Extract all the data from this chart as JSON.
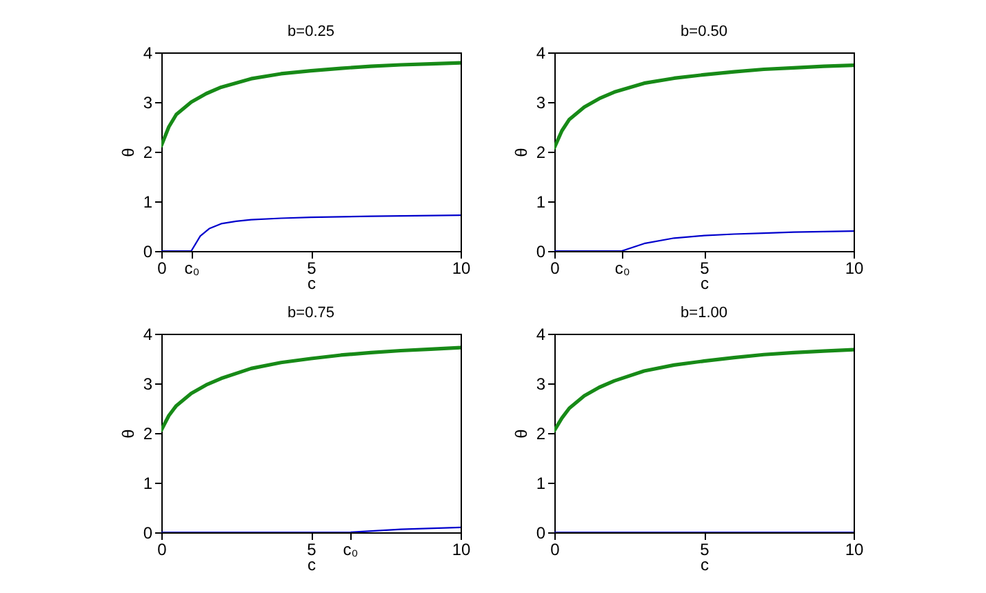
{
  "chart_data": [
    {
      "type": "line",
      "title": "b=0.25",
      "xlabel": "c",
      "ylabel": "θ",
      "xlim": [
        0,
        10
      ],
      "ylim": [
        0,
        4
      ],
      "xticks": [
        0,
        {
          "value": 1.0,
          "label": "c₀"
        },
        5,
        10
      ],
      "yticks": [
        0,
        1,
        2,
        3,
        4
      ],
      "grid": false,
      "series": [
        {
          "color": "#178a17",
          "x": [
            0,
            0.25,
            0.5,
            1,
            1.5,
            2,
            3,
            4,
            5,
            6,
            7,
            8,
            9,
            10
          ],
          "values": [
            2.12,
            2.5,
            2.75,
            3.0,
            3.17,
            3.3,
            3.47,
            3.57,
            3.63,
            3.68,
            3.72,
            3.75,
            3.77,
            3.79
          ]
        },
        {
          "color": "#0000cc",
          "x": [
            0,
            1.0,
            1.3,
            1.6,
            2,
            2.5,
            3,
            4,
            5,
            7,
            10
          ],
          "values": [
            0,
            0,
            0.3,
            0.45,
            0.55,
            0.6,
            0.63,
            0.66,
            0.68,
            0.7,
            0.72
          ]
        }
      ]
    },
    {
      "type": "line",
      "title": "b=0.50",
      "xlabel": "c",
      "ylabel": "θ",
      "xlim": [
        0,
        10
      ],
      "ylim": [
        0,
        4
      ],
      "xticks": [
        0,
        {
          "value": 2.25,
          "label": "c₀"
        },
        5,
        10
      ],
      "yticks": [
        0,
        1,
        2,
        3,
        4
      ],
      "grid": false,
      "series": [
        {
          "color": "#178a17",
          "x": [
            0,
            0.25,
            0.5,
            1,
            1.5,
            2,
            3,
            4,
            5,
            6,
            7,
            8,
            9,
            10
          ],
          "values": [
            2.08,
            2.42,
            2.65,
            2.9,
            3.07,
            3.2,
            3.38,
            3.48,
            3.55,
            3.61,
            3.66,
            3.69,
            3.72,
            3.74
          ]
        },
        {
          "color": "#0000cc",
          "x": [
            0,
            2.25,
            3,
            4,
            5,
            6,
            7,
            8,
            10
          ],
          "values": [
            0,
            0,
            0.15,
            0.26,
            0.31,
            0.34,
            0.36,
            0.38,
            0.4
          ]
        }
      ]
    },
    {
      "type": "line",
      "title": "b=0.75",
      "xlabel": "c",
      "ylabel": "θ",
      "xlim": [
        0,
        10
      ],
      "ylim": [
        0,
        4
      ],
      "xticks": [
        0,
        5,
        {
          "value": 6.3,
          "label": "c₀"
        },
        10
      ],
      "yticks": [
        0,
        1,
        2,
        3,
        4
      ],
      "grid": false,
      "series": [
        {
          "color": "#178a17",
          "x": [
            0,
            0.25,
            0.5,
            1,
            1.5,
            2,
            3,
            4,
            5,
            6,
            7,
            8,
            9,
            10
          ],
          "values": [
            2.06,
            2.35,
            2.55,
            2.8,
            2.97,
            3.1,
            3.3,
            3.42,
            3.5,
            3.57,
            3.62,
            3.66,
            3.69,
            3.72
          ]
        },
        {
          "color": "#0000cc",
          "x": [
            0,
            6.3,
            8,
            10
          ],
          "values": [
            0,
            0,
            0.06,
            0.1
          ]
        }
      ]
    },
    {
      "type": "line",
      "title": "b=1.00",
      "xlabel": "c",
      "ylabel": "θ",
      "xlim": [
        0,
        10
      ],
      "ylim": [
        0,
        4
      ],
      "xticks": [
        0,
        5,
        10
      ],
      "yticks": [
        0,
        1,
        2,
        3,
        4
      ],
      "grid": false,
      "series": [
        {
          "color": "#178a17",
          "x": [
            0,
            0.25,
            0.5,
            1,
            1.5,
            2,
            3,
            4,
            5,
            6,
            7,
            8,
            9,
            10
          ],
          "values": [
            2.05,
            2.3,
            2.5,
            2.75,
            2.92,
            3.05,
            3.25,
            3.37,
            3.45,
            3.52,
            3.58,
            3.62,
            3.65,
            3.68
          ]
        },
        {
          "color": "#0000cc",
          "x": [
            0,
            10
          ],
          "values": [
            0,
            0
          ]
        }
      ]
    }
  ]
}
